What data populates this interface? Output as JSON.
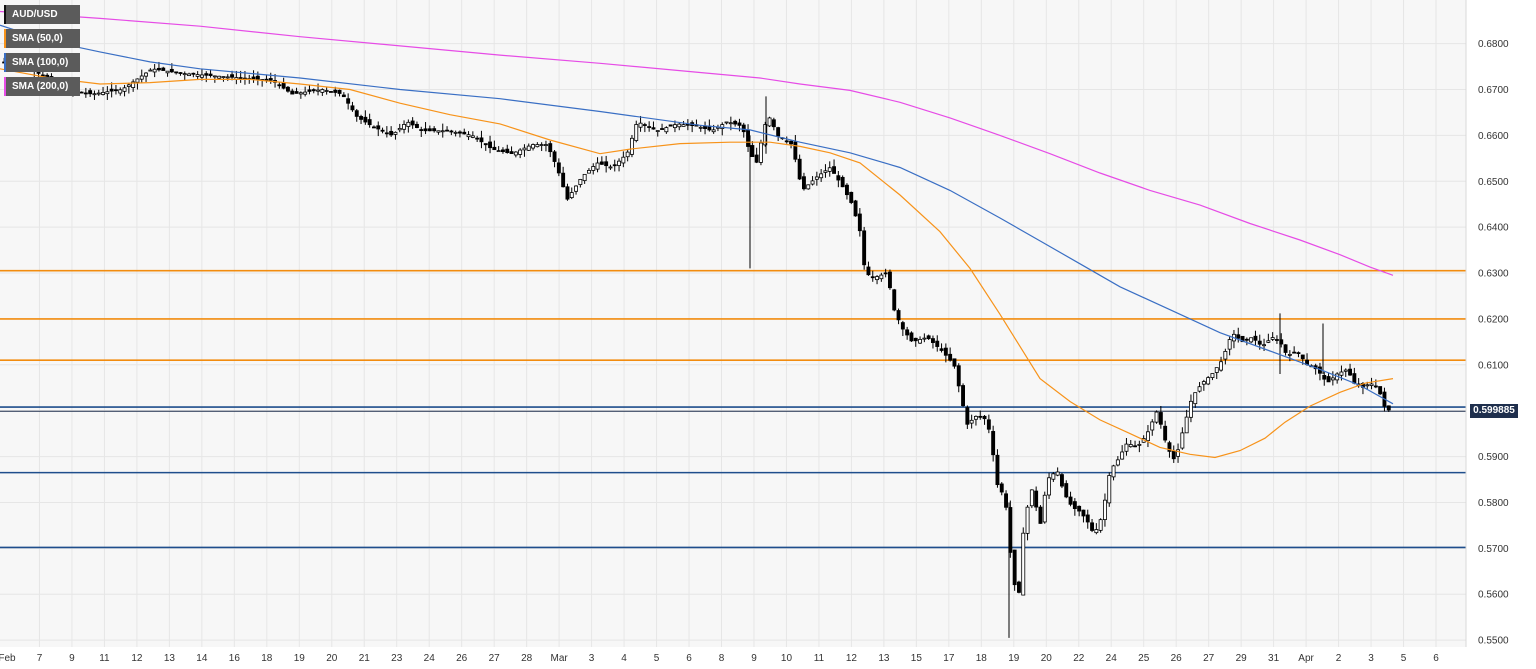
{
  "legend": {
    "items": [
      {
        "label": "AUD/USD",
        "color": "#111111"
      },
      {
        "label": "SMA (50,0)",
        "color": "#f7931a"
      },
      {
        "label": "SMA (100,0)",
        "color": "#3a6fc4"
      },
      {
        "label": "SMA (200,0)",
        "color": "#e64ce6"
      }
    ]
  },
  "price_tag": "0.599885",
  "colors": {
    "background": "#ffffff",
    "plot_band": "#f7f7f7",
    "grid": "#e6e6e6",
    "candle_body": "#000000",
    "resistance": "#f28c0f",
    "support": "#1f4e8c",
    "sma50": "#f7931a",
    "sma100": "#3a6fc4",
    "sma200": "#e64ce6"
  },
  "chart_data": {
    "type": "candlestick",
    "symbol": "AUD/USD",
    "timeframe": "4h",
    "ylim": [
      0.5485,
      0.6895
    ],
    "y_ticks": [
      0.55,
      0.56,
      0.57,
      0.58,
      0.59,
      0.6,
      0.61,
      0.62,
      0.63,
      0.64,
      0.65,
      0.66,
      0.67,
      0.68
    ],
    "y_tick_labels": [
      "0.5500",
      "0.5600",
      "0.5700",
      "0.5800",
      "0.5900",
      "0.6000",
      "0.6100",
      "0.6200",
      "0.6300",
      "0.6400",
      "0.6500",
      "0.6600",
      "0.6700",
      "0.6800"
    ],
    "x_tick_labels": [
      "Feb",
      "7",
      "9",
      "11",
      "12",
      "13",
      "14",
      "16",
      "18",
      "19",
      "20",
      "21",
      "23",
      "24",
      "26",
      "27",
      "28",
      "Mar",
      "3",
      "4",
      "5",
      "6",
      "8",
      "9",
      "10",
      "11",
      "12",
      "13",
      "15",
      "17",
      "18",
      "19",
      "20",
      "22",
      "24",
      "25",
      "26",
      "27",
      "29",
      "31",
      "Apr",
      "2",
      "3",
      "5",
      "6"
    ],
    "horizontal_levels": {
      "resistance": [
        0.6305,
        0.62,
        0.611
      ],
      "support": [
        0.6008,
        0.5865,
        0.5702
      ]
    },
    "last_price": 0.599885,
    "close_path": [
      [
        0,
        0.676
      ],
      [
        30,
        0.6745
      ],
      [
        60,
        0.67
      ],
      [
        90,
        0.669
      ],
      [
        120,
        0.67
      ],
      [
        150,
        0.6745
      ],
      [
        180,
        0.6735
      ],
      [
        210,
        0.673
      ],
      [
        240,
        0.6725
      ],
      [
        270,
        0.672
      ],
      [
        290,
        0.669
      ],
      [
        320,
        0.67
      ],
      [
        340,
        0.669
      ],
      [
        355,
        0.664
      ],
      [
        370,
        0.662
      ],
      [
        390,
        0.66
      ],
      [
        405,
        0.663
      ],
      [
        420,
        0.661
      ],
      [
        445,
        0.661
      ],
      [
        470,
        0.66
      ],
      [
        490,
        0.657
      ],
      [
        510,
        0.656
      ],
      [
        530,
        0.658
      ],
      [
        545,
        0.658
      ],
      [
        555,
        0.653
      ],
      [
        565,
        0.646
      ],
      [
        580,
        0.651
      ],
      [
        595,
        0.654
      ],
      [
        610,
        0.653
      ],
      [
        625,
        0.656
      ],
      [
        635,
        0.663
      ],
      [
        655,
        0.661
      ],
      [
        675,
        0.6625
      ],
      [
        695,
        0.662
      ],
      [
        710,
        0.661
      ],
      [
        725,
        0.663
      ],
      [
        740,
        0.662
      ],
      [
        748,
        0.656
      ],
      [
        755,
        0.654
      ],
      [
        762,
        0.662
      ],
      [
        768,
        0.664
      ],
      [
        775,
        0.66
      ],
      [
        790,
        0.658
      ],
      [
        800,
        0.648
      ],
      [
        815,
        0.651
      ],
      [
        828,
        0.653
      ],
      [
        840,
        0.649
      ],
      [
        850,
        0.645
      ],
      [
        858,
        0.639
      ],
      [
        863,
        0.63
      ],
      [
        872,
        0.629
      ],
      [
        885,
        0.63
      ],
      [
        892,
        0.622
      ],
      [
        900,
        0.618
      ],
      [
        910,
        0.615
      ],
      [
        925,
        0.616
      ],
      [
        940,
        0.613
      ],
      [
        952,
        0.61
      ],
      [
        958,
        0.604
      ],
      [
        965,
        0.597
      ],
      [
        975,
        0.599
      ],
      [
        985,
        0.598
      ],
      [
        990,
        0.592
      ],
      [
        995,
        0.584
      ],
      [
        1003,
        0.581
      ],
      [
        1010,
        0.565
      ],
      [
        1016,
        0.558
      ],
      [
        1022,
        0.576
      ],
      [
        1030,
        0.583
      ],
      [
        1038,
        0.575
      ],
      [
        1045,
        0.585
      ],
      [
        1055,
        0.587
      ],
      [
        1062,
        0.582
      ],
      [
        1070,
        0.579
      ],
      [
        1078,
        0.578
      ],
      [
        1085,
        0.576
      ],
      [
        1092,
        0.573
      ],
      [
        1100,
        0.577
      ],
      [
        1108,
        0.587
      ],
      [
        1115,
        0.589
      ],
      [
        1125,
        0.593
      ],
      [
        1135,
        0.592
      ],
      [
        1145,
        0.595
      ],
      [
        1155,
        0.6
      ],
      [
        1165,
        0.592
      ],
      [
        1173,
        0.589
      ],
      [
        1180,
        0.595
      ],
      [
        1190,
        0.603
      ],
      [
        1200,
        0.606
      ],
      [
        1210,
        0.608
      ],
      [
        1220,
        0.611
      ],
      [
        1230,
        0.617
      ],
      [
        1240,
        0.615
      ],
      [
        1250,
        0.616
      ],
      [
        1260,
        0.614
      ],
      [
        1270,
        0.616
      ],
      [
        1278,
        0.615
      ],
      [
        1285,
        0.612
      ],
      [
        1295,
        0.613
      ],
      [
        1305,
        0.61
      ],
      [
        1315,
        0.609
      ],
      [
        1325,
        0.606
      ],
      [
        1335,
        0.608
      ],
      [
        1345,
        0.609
      ],
      [
        1352,
        0.606
      ],
      [
        1360,
        0.605
      ],
      [
        1368,
        0.606
      ],
      [
        1376,
        0.605
      ],
      [
        1382,
        0.601
      ],
      [
        1388,
        0.5999
      ]
    ],
    "sma50_path": [
      [
        0,
        0.6745
      ],
      [
        50,
        0.6725
      ],
      [
        100,
        0.6712
      ],
      [
        150,
        0.6715
      ],
      [
        200,
        0.6722
      ],
      [
        250,
        0.6722
      ],
      [
        300,
        0.6712
      ],
      [
        350,
        0.67
      ],
      [
        400,
        0.667
      ],
      [
        450,
        0.6645
      ],
      [
        500,
        0.6625
      ],
      [
        550,
        0.659
      ],
      [
        600,
        0.656
      ],
      [
        630,
        0.657
      ],
      [
        680,
        0.6582
      ],
      [
        730,
        0.6585
      ],
      [
        770,
        0.6585
      ],
      [
        800,
        0.6576
      ],
      [
        830,
        0.6562
      ],
      [
        860,
        0.654
      ],
      [
        900,
        0.647
      ],
      [
        940,
        0.639
      ],
      [
        970,
        0.631
      ],
      [
        1000,
        0.621
      ],
      [
        1020,
        0.614
      ],
      [
        1040,
        0.607
      ],
      [
        1070,
        0.602
      ],
      [
        1100,
        0.598
      ],
      [
        1130,
        0.595
      ],
      [
        1160,
        0.592
      ],
      [
        1190,
        0.5905
      ],
      [
        1215,
        0.5898
      ],
      [
        1240,
        0.5913
      ],
      [
        1265,
        0.594
      ],
      [
        1285,
        0.5975
      ],
      [
        1310,
        0.601
      ],
      [
        1340,
        0.604
      ],
      [
        1365,
        0.606
      ],
      [
        1393,
        0.607
      ]
    ],
    "sma100_path": [
      [
        0,
        0.684
      ],
      [
        50,
        0.6805
      ],
      [
        100,
        0.6782
      ],
      [
        150,
        0.676
      ],
      [
        200,
        0.6745
      ],
      [
        300,
        0.6725
      ],
      [
        400,
        0.67
      ],
      [
        500,
        0.668
      ],
      [
        600,
        0.6652
      ],
      [
        700,
        0.6622
      ],
      [
        750,
        0.6612
      ],
      [
        800,
        0.6585
      ],
      [
        850,
        0.6562
      ],
      [
        900,
        0.653
      ],
      [
        950,
        0.648
      ],
      [
        1000,
        0.642
      ],
      [
        1040,
        0.637
      ],
      [
        1080,
        0.632
      ],
      [
        1120,
        0.627
      ],
      [
        1170,
        0.622
      ],
      [
        1220,
        0.617
      ],
      [
        1270,
        0.613
      ],
      [
        1320,
        0.609
      ],
      [
        1360,
        0.6055
      ],
      [
        1393,
        0.6015
      ]
    ],
    "sma200_path": [
      [
        0,
        0.687
      ],
      [
        100,
        0.6855
      ],
      [
        200,
        0.6838
      ],
      [
        300,
        0.6815
      ],
      [
        400,
        0.6795
      ],
      [
        500,
        0.6775
      ],
      [
        600,
        0.6757
      ],
      [
        700,
        0.6737
      ],
      [
        760,
        0.6725
      ],
      [
        800,
        0.6712
      ],
      [
        850,
        0.6698
      ],
      [
        900,
        0.6672
      ],
      [
        950,
        0.6638
      ],
      [
        1000,
        0.66
      ],
      [
        1050,
        0.656
      ],
      [
        1100,
        0.6518
      ],
      [
        1150,
        0.648
      ],
      [
        1200,
        0.6448
      ],
      [
        1250,
        0.6408
      ],
      [
        1300,
        0.6372
      ],
      [
        1340,
        0.634
      ],
      [
        1370,
        0.6313
      ],
      [
        1393,
        0.6295
      ]
    ]
  }
}
